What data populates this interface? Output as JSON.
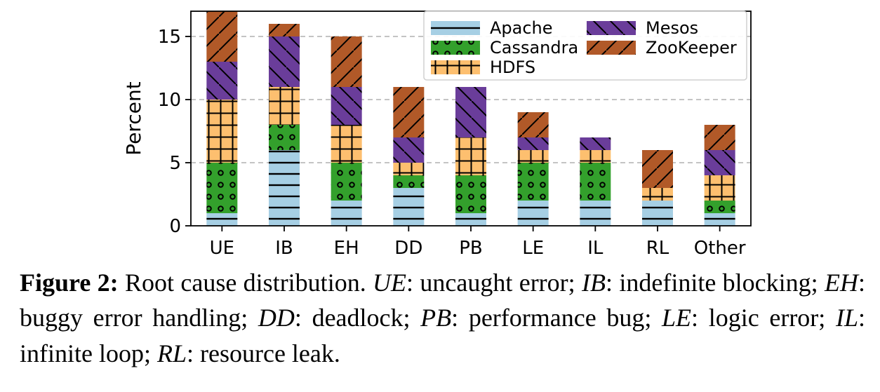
{
  "chart_data": {
    "type": "bar",
    "stacked": true,
    "categories": [
      "UE",
      "IB",
      "EH",
      "DD",
      "PB",
      "LE",
      "IL",
      "RL",
      "Other"
    ],
    "series": [
      {
        "name": "Apache",
        "values": [
          1,
          6,
          2,
          3,
          1,
          2,
          2,
          2,
          1
        ],
        "color": "#a6cfe4",
        "pattern": "horizontal lines"
      },
      {
        "name": "Cassandra",
        "values": [
          4,
          2,
          3,
          1,
          3,
          3,
          3,
          0,
          1
        ],
        "color": "#33a02c",
        "pattern": "small circles"
      },
      {
        "name": "HDFS",
        "values": [
          5,
          3,
          3,
          1,
          3,
          1,
          1,
          1,
          2
        ],
        "color": "#fdbf6f",
        "pattern": "grid"
      },
      {
        "name": "Mesos",
        "values": [
          3,
          4,
          3,
          2,
          4,
          1,
          1,
          0,
          2
        ],
        "color": "#6a3d9a",
        "pattern": "backslash diagonal"
      },
      {
        "name": "ZooKeeper",
        "values": [
          4,
          1,
          4,
          4,
          0,
          2,
          0,
          3,
          2
        ],
        "color": "#b15928",
        "pattern": "forward diagonal"
      }
    ],
    "xlabel": "",
    "ylabel": "Percent",
    "ylim": [
      0,
      17
    ],
    "yticks": [
      0,
      5,
      10,
      15
    ],
    "grid": "horizontal dashed",
    "legend": "top-right"
  },
  "caption": {
    "label": "Figure 2:",
    "parts": [
      {
        "t": " Root cause distribution. ",
        "i": false
      },
      {
        "t": "UE",
        "i": true
      },
      {
        "t": ": uncaught error; ",
        "i": false
      },
      {
        "t": "IB",
        "i": true
      },
      {
        "t": ": indefinite blocking; ",
        "i": false
      },
      {
        "t": "EH",
        "i": true
      },
      {
        "t": ": buggy error handling; ",
        "i": false
      },
      {
        "t": "DD",
        "i": true
      },
      {
        "t": ": deadlock; ",
        "i": false
      },
      {
        "t": "PB",
        "i": true
      },
      {
        "t": ": performance bug; ",
        "i": false
      },
      {
        "t": "LE",
        "i": true
      },
      {
        "t": ": logic error; ",
        "i": false
      },
      {
        "t": "IL",
        "i": true
      },
      {
        "t": ": infinite loop; ",
        "i": false
      },
      {
        "t": "RL",
        "i": true
      },
      {
        "t": ": resource leak.",
        "i": false
      }
    ]
  }
}
